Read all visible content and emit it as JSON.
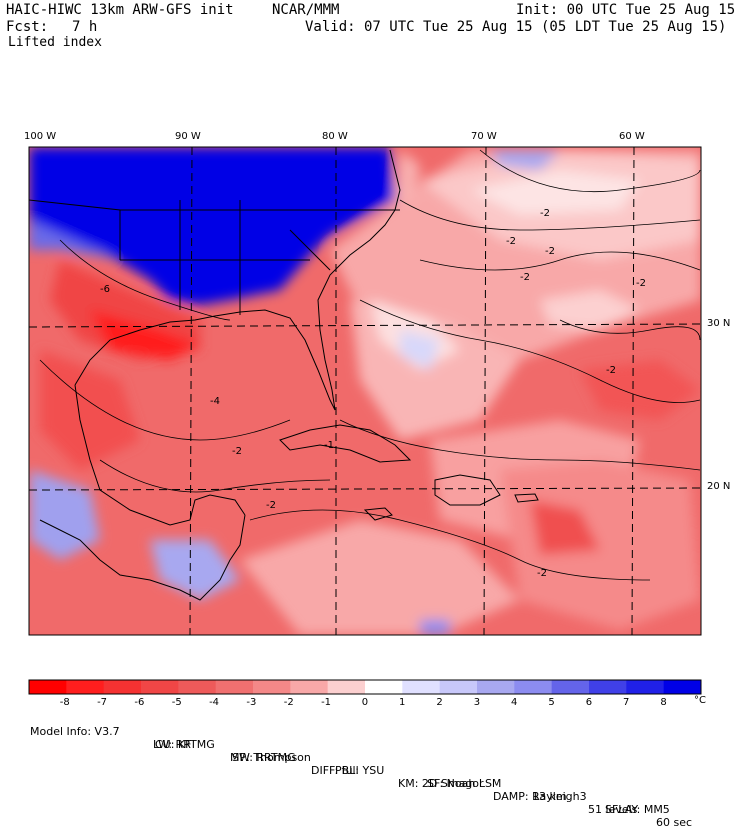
{
  "header": {
    "model": "HAIC-HIWC 13km ARW-GFS init",
    "org": "NCAR/MMM",
    "init": "Init: 00 UTC Tue 25 Aug 15",
    "fcst_label": "Fcst:",
    "fcst_value": "7 h",
    "valid": "Valid: 07 UTC Tue 25 Aug 15 (05 LDT Tue 25 Aug 15)",
    "field": "Lifted index"
  },
  "map": {
    "lon_labels": [
      "100 W",
      "90 W",
      "80 W",
      "70 W",
      "60 W"
    ],
    "lat_labels": [
      "30 N",
      "20 N"
    ],
    "contour_labels": [
      "-2",
      "-2",
      "-2",
      "-2",
      "-2",
      "-2",
      "-2",
      "-2",
      "-2",
      "-1",
      "-4",
      "-6"
    ]
  },
  "colorbar": {
    "labels": [
      "-8",
      "-7",
      "-6",
      "-5",
      "-4",
      "-3",
      "-2",
      "-1",
      "0",
      "1",
      "2",
      "3",
      "4",
      "5",
      "6",
      "7",
      "8"
    ],
    "unit": "°C",
    "colors": [
      "#ff0000",
      "#ff1e1e",
      "#f53232",
      "#f04646",
      "#ee5a5a",
      "#f07070",
      "#f48888",
      "#f8a8a8",
      "#fcd0d0",
      "#ffffff",
      "#e0e0ff",
      "#c8c8fa",
      "#a8a8f0",
      "#8c8cf0",
      "#6464ea",
      "#4040e8",
      "#2020e8",
      "#0000e6"
    ]
  },
  "footer": {
    "line1": [
      "Model Info: V3.7",
      "CU: KF",
      "MP: Thompson",
      "PBL: YSU",
      "SF: Noah LSM",
      "13 km",
      "51 levels",
      "60 sec"
    ],
    "line2": [
      "LW: RRTMG",
      "SW: RRTMG",
      "DIFF: full",
      "KM: 2D Smagor",
      "DAMP: Rayleigh3",
      "SFLAY: MM5"
    ]
  }
}
